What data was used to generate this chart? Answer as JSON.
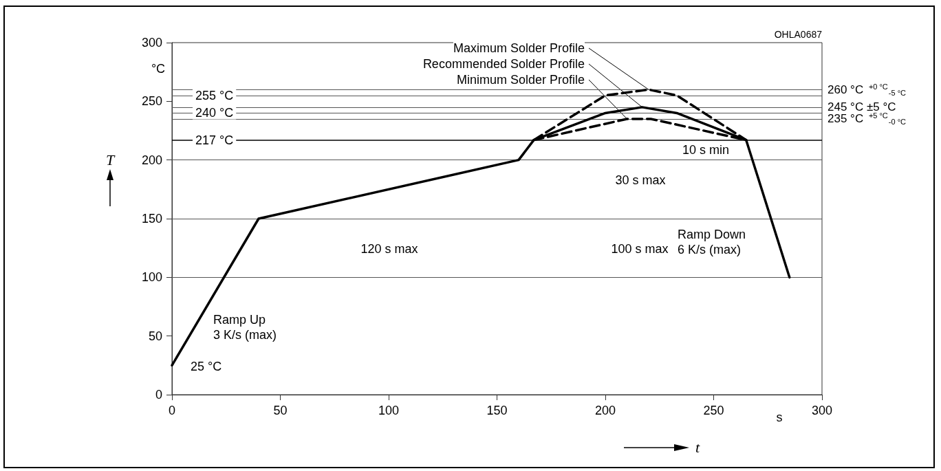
{
  "chart_data": {
    "type": "line",
    "xlabel": "t",
    "ylabel": "T",
    "series": [
      {
        "name": "Maximum Solder Profile",
        "color": "#000000",
        "line_style": "dashed",
        "x": [
          167,
          200,
          220,
          233,
          265
        ],
        "values": [
          217,
          255,
          260,
          255,
          217
        ]
      },
      {
        "name": "Recommended Solder Profile",
        "color": "#000000",
        "line_style": "solid",
        "x": [
          0,
          40,
          160,
          167,
          200,
          217,
          233,
          265,
          285
        ],
        "values": [
          25,
          150,
          200,
          217,
          240,
          245,
          240,
          217,
          100
        ]
      },
      {
        "name": "Minimum Solder Profile",
        "color": "#000000",
        "line_style": "dashed",
        "x": [
          167,
          210,
          221,
          265
        ],
        "values": [
          217,
          235,
          235,
          217
        ]
      }
    ],
    "xlim": [
      0,
      300
    ],
    "xticks": [
      0,
      50,
      100,
      150,
      200,
      250,
      300
    ],
    "ylim": [
      0,
      300
    ],
    "yticks": [
      0,
      50,
      100,
      150,
      200,
      250,
      300
    ],
    "grid": false,
    "legend": false,
    "marker": "none",
    "ref_lines": [
      {
        "axis": "y",
        "value": 255,
        "label": "255 °C",
        "color": "#555555"
      },
      {
        "axis": "y",
        "value": 240,
        "label": "240 °C",
        "color": "#555555"
      },
      {
        "axis": "y",
        "value": 217,
        "label": "217 °C",
        "color": "#000000"
      },
      {
        "axis": "y",
        "value": 200,
        "label": null,
        "color": "#555555"
      },
      {
        "axis": "y",
        "value": 150,
        "label": null,
        "color": "#555555"
      },
      {
        "axis": "y",
        "value": 100,
        "label": null,
        "color": "#555555"
      },
      {
        "axis": "y",
        "value": 260,
        "label": "260 °C $^{+0 °C}$$_{-5 °C}$",
        "color": "#555555"
      },
      {
        "axis": "y",
        "value": 245,
        "label": "245 °C ±5 °C",
        "color": "#555555"
      },
      {
        "axis": "y",
        "value": 235,
        "label": "235 °C $^{+5 °C}$$_{-0 °C}$",
        "color": "#555555"
      }
    ],
    "annotations": [
      "OHLA0687",
      "°C",
      "s",
      "Ramp Up\n3 K/s (max)",
      "Ramp Down\n6 K/s (max)",
      "25 °C",
      "120 s max",
      "100 s max",
      "30 s max",
      "10 s min"
    ]
  }
}
